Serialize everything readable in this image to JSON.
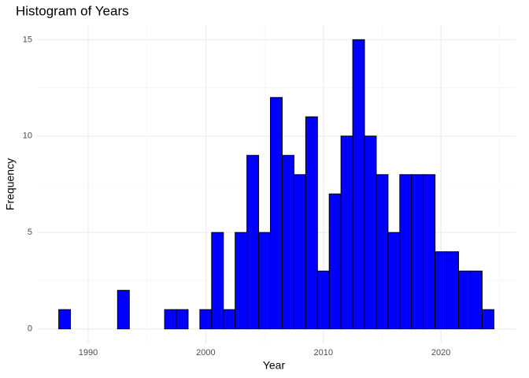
{
  "chart_data": {
    "type": "histogram",
    "title": "Histogram of Years",
    "x_label": "Year",
    "y_label": "Frequency",
    "bins": [
      1987.5,
      1988.5,
      1989.5,
      1990.5,
      1991.5,
      1992.5,
      1993.5,
      1994.5,
      1995.5,
      1996.5,
      1997.5,
      1998.5,
      1999.5,
      2000.5,
      2001.5,
      2002.5,
      2003.5,
      2004.5,
      2005.5,
      2006.5,
      2007.5,
      2008.5,
      2009.5,
      2010.5,
      2011.5,
      2012.5,
      2013.5,
      2014.5,
      2015.5,
      2016.5,
      2017.5,
      2018.5,
      2019.5,
      2020.5,
      2021.5,
      2022.5,
      2023.5,
      2024.5
    ],
    "values": [
      1,
      0,
      0,
      0,
      0,
      2,
      0,
      0,
      0,
      1,
      1,
      0,
      1,
      5,
      1,
      5,
      9,
      5,
      12,
      9,
      8,
      11,
      3,
      7,
      10,
      15,
      10,
      8,
      5,
      8,
      8,
      8,
      4,
      4,
      3,
      3,
      1
    ],
    "color": "#0000ff",
    "edge_color": "#000000",
    "xlim": [
      1985.65,
      2026.35
    ],
    "ylim": [
      -0.75,
      15.75
    ],
    "xticks": [
      1990,
      2000,
      2010,
      2020
    ],
    "yticks": [
      0,
      5,
      10,
      15
    ],
    "xminor": [
      1995,
      2005,
      2015,
      2025
    ],
    "yminor": [
      2.5,
      7.5,
      12.5
    ],
    "grid": true
  }
}
